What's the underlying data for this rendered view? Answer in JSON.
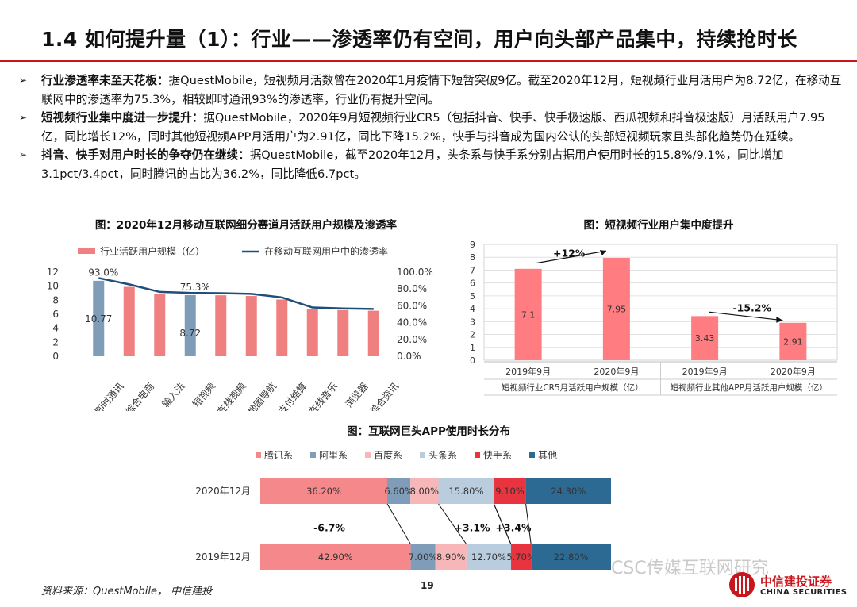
{
  "page": {
    "title": "1.4 如何提升量（1）：行业——渗透率仍有空间，用户向头部产品集中，持续抢时长",
    "source": "资料来源：QuestMobile， 中信建投",
    "page_number": "19",
    "watermark": "CSC传媒互联网研究",
    "logo_cn": "中信建投证券",
    "logo_en": "CHINA SECURITIES",
    "accent_color": "#c8161d"
  },
  "bullets": [
    {
      "head": "行业渗透率未至天花板：",
      "body": "据QuestMobile，短视频月活数曾在2020年1月疫情下短暂突破9亿。截至2020年12月，短视频行业月活用户为8.72亿，在移动互联网中的渗透率为75.3%，相较即时通讯93%的渗透率，行业仍有提升空间。"
    },
    {
      "head": "短视频行业集中度进一步提升：",
      "body": "据QuestMobile，2020年9月短视频行业CR5（包括抖音、快手、快手极速版、西瓜视频和抖音极速版）月活跃用户7.95亿，同比增长12%，同时其他短视频APP月活用户为2.91亿，同比下降15.2%，快手与抖音成为国内公认的头部短视频玩家且头部化趋势仍在延续。"
    },
    {
      "head": "抖音、快手对用户时长的争夺仍在继续：",
      "body": "据QuestMobile，截至2020年12月，头条系与快手系分别占据用户使用时长的15.8%/9.1%，同比增加3.1pct/3.4pct，同时腾讯的占比为36.2%，同比降低6.7pct。"
    }
  ],
  "chart_data": [
    {
      "type": "bar",
      "title": "图：2020年12月移动互联网细分赛道月活跃用户规模及渗透率",
      "categories": [
        "即时通讯",
        "综合电商",
        "输入法",
        "短视频",
        "在线视频",
        "地图导航",
        "支付结算",
        "在线音乐",
        "浏览器",
        "综合资讯"
      ],
      "series": [
        {
          "name": "行业活跃用户规模（亿）",
          "axis": "left",
          "values": [
            10.77,
            9.9,
            8.85,
            8.72,
            8.7,
            8.6,
            8.1,
            6.7,
            6.6,
            6.5
          ]
        },
        {
          "name": "在移动互联网用户中的渗透率",
          "axis": "right",
          "type": "line",
          "values": [
            0.93,
            0.855,
            0.765,
            0.753,
            0.75,
            0.742,
            0.7,
            0.58,
            0.568,
            0.562
          ]
        }
      ],
      "highlight_indices": [
        0,
        3
      ],
      "data_labels": [
        {
          "index": 0,
          "bar": "10.77",
          "line": "93.0%"
        },
        {
          "index": 3,
          "bar": "8.72",
          "line": "75.3%"
        }
      ],
      "left_ticks": [
        "0",
        "2",
        "4",
        "6",
        "8",
        "10",
        "12"
      ],
      "right_ticks": [
        "0.0%",
        "20.0%",
        "40.0%",
        "60.0%",
        "80.0%",
        "100.0%"
      ],
      "ylim_left": [
        0,
        12
      ],
      "ylim_right": [
        0,
        1
      ],
      "colors": {
        "bar": "#f08080",
        "bar_highlight": "#7f9db9",
        "line": "#1f4e79"
      },
      "legend": "top"
    },
    {
      "type": "bar",
      "title": "图：短视频行业用户集中度提升",
      "categories": [
        "2019年9月",
        "2020年9月",
        "2019年9月",
        "2020年9月"
      ],
      "groups": [
        "短视频行业CR5月活跃用户规模（亿）",
        "短视频行业其他APP月活跃用户规模（亿）"
      ],
      "values": [
        7.1,
        7.95,
        3.43,
        2.91
      ],
      "value_labels": [
        "7.1",
        "7.95",
        "3.43",
        "2.91"
      ],
      "ticks": [
        "0",
        "1",
        "2",
        "3",
        "4",
        "5",
        "6",
        "7",
        "8",
        "9"
      ],
      "ylim": [
        0,
        9
      ],
      "annotations": [
        "+12%",
        "-15.2%"
      ],
      "colors": {
        "bar": "#ff7c80"
      }
    },
    {
      "type": "bar",
      "title": "图：互联网巨头APP使用时长分布",
      "categories": [
        "2020年12月",
        "2019年12月"
      ],
      "series": [
        {
          "name": "腾讯系",
          "color": "#f4888b",
          "values": [
            36.2,
            42.9
          ],
          "labels": [
            "36.20%",
            "42.90%"
          ]
        },
        {
          "name": "阿里系",
          "color": "#7f9db9",
          "values": [
            6.6,
            7.0
          ],
          "labels": [
            "6.60%",
            "7.00%"
          ]
        },
        {
          "name": "百度系",
          "color": "#f7b6b7",
          "values": [
            8.0,
            8.9
          ],
          "labels": [
            "8.00%",
            "8.90%"
          ]
        },
        {
          "name": "头条系",
          "color": "#b9cddf",
          "values": [
            15.8,
            12.7
          ],
          "labels": [
            "15.80%",
            "12.70%"
          ]
        },
        {
          "name": "快手系",
          "color": "#e8343e",
          "values": [
            9.1,
            5.7
          ],
          "labels": [
            "9.10%",
            "5.70%"
          ]
        },
        {
          "name": "其他",
          "color": "#2d6a93",
          "values": [
            24.3,
            22.8
          ],
          "labels": [
            "24.30%",
            "22.80%"
          ]
        }
      ],
      "annotations": [
        "-6.7%",
        "+3.1%",
        "+3.4%"
      ],
      "stacked": true,
      "legend": "top"
    }
  ]
}
